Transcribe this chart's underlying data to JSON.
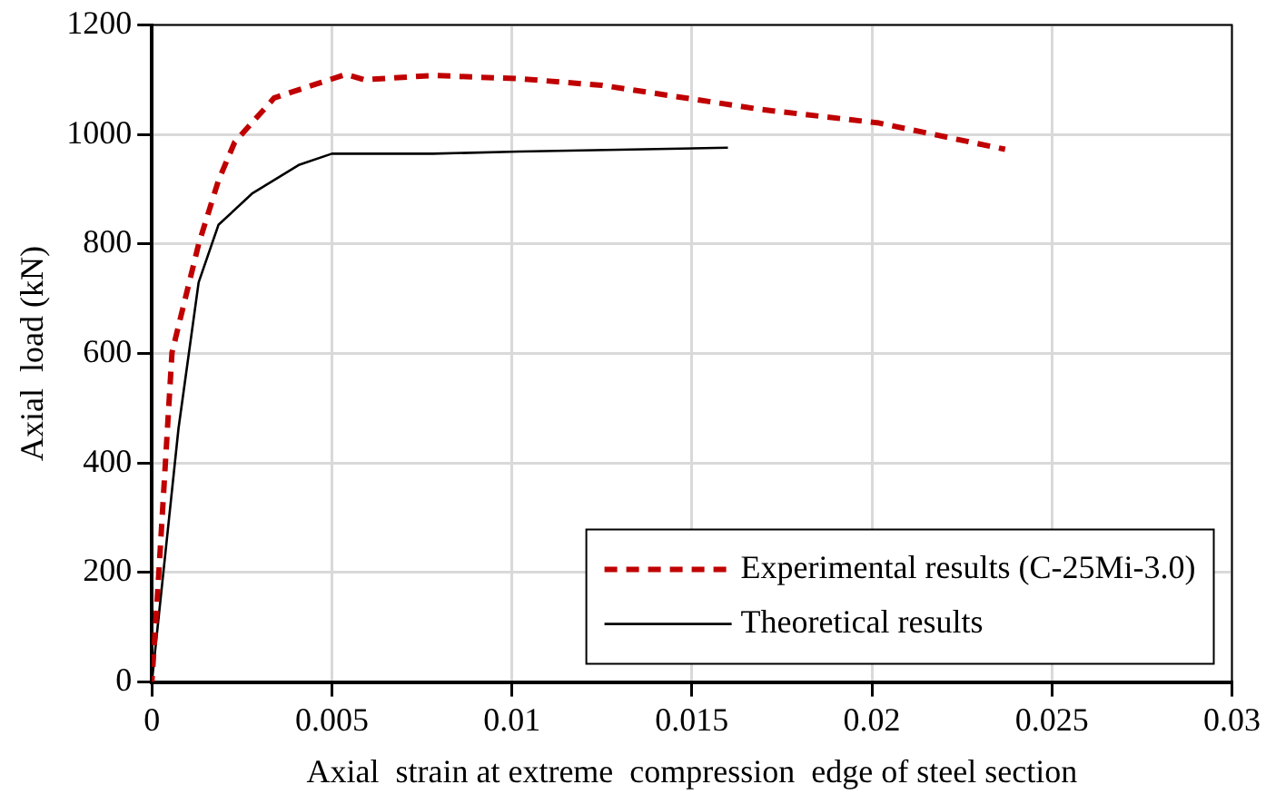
{
  "chart_data": {
    "type": "line",
    "xlabel": "Axial  strain at extreme  compression  edge of steel section",
    "ylabel": "Axial  load (kN)",
    "xlim": [
      0,
      0.03
    ],
    "xticks": [
      0,
      0.005,
      0.01,
      0.015,
      0.02,
      0.025,
      0.03
    ],
    "ylim": [
      0,
      1200
    ],
    "yticks": [
      0,
      200,
      400,
      600,
      800,
      1000,
      1200
    ],
    "grid": true,
    "legend": "bottom right",
    "marker": "none",
    "series": [
      {
        "name": "Experimental results (C-25Mi-3.0)",
        "color": "#c00000",
        "line_style": "dashed",
        "x": [
          0,
          0.00018,
          0.00056,
          0.0013,
          0.00185,
          0.0023,
          0.0034,
          0.0046,
          0.0054,
          0.0059,
          0.0078,
          0.0102,
          0.0125,
          0.0169,
          0.0202,
          0.0237
        ],
        "values": [
          0,
          184,
          602,
          800,
          916,
          986,
          1067,
          1093,
          1110,
          1100,
          1108,
          1102,
          1090,
          1046,
          1021,
          973
        ]
      },
      {
        "name": "Theoretical results",
        "color": "#000000",
        "line_style": "solid",
        "x": [
          0,
          0.00074,
          0.0013,
          0.00185,
          0.0028,
          0.0041,
          0.005,
          0.0078,
          0.0102,
          0.016
        ],
        "values": [
          0,
          463,
          730,
          835,
          893,
          945,
          965,
          965,
          969,
          976
        ]
      }
    ]
  }
}
